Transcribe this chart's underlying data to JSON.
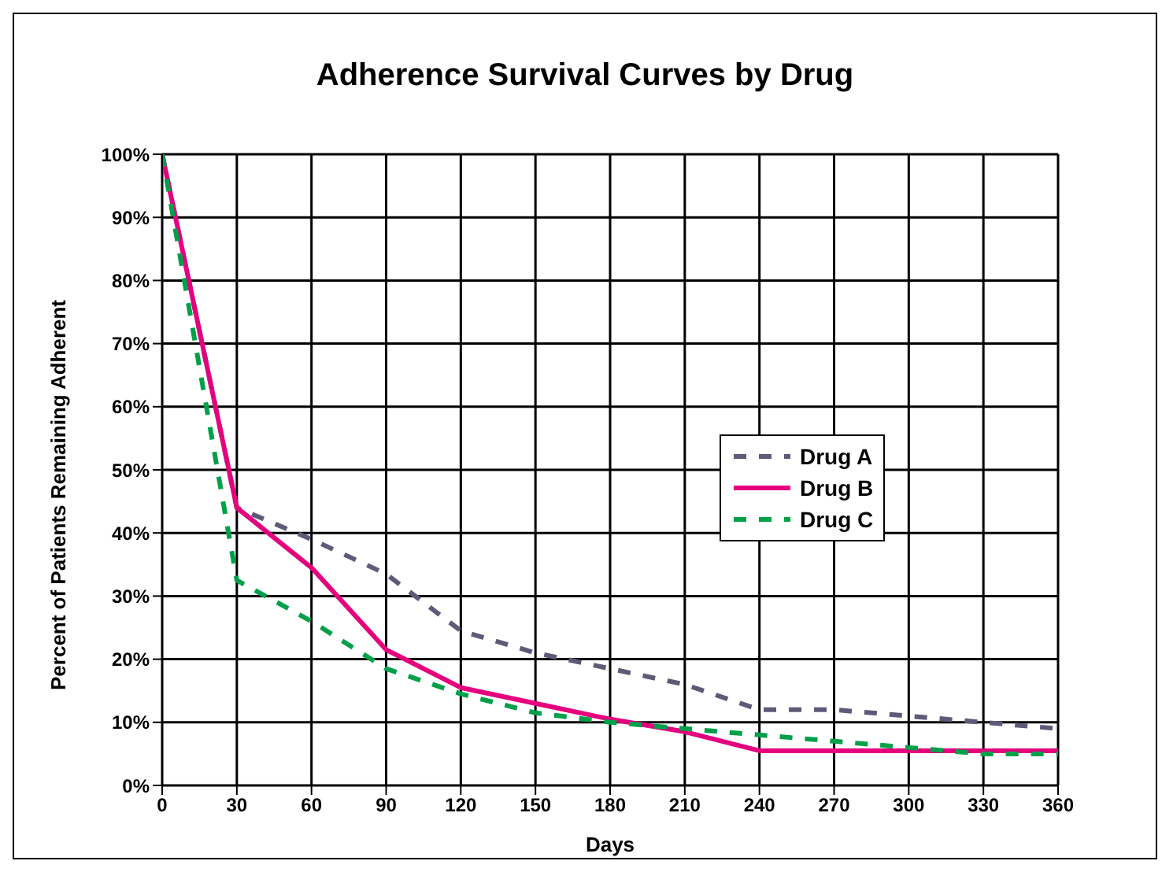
{
  "chart_data": {
    "type": "line",
    "title": "Adherence Survival Curves by Drug",
    "xlabel": "Days",
    "ylabel": "Percent of Patients Remaining Adherent",
    "x": [
      0,
      30,
      60,
      90,
      120,
      150,
      180,
      210,
      240,
      270,
      300,
      330,
      360
    ],
    "series": [
      {
        "name": "Drug A",
        "color": "#5f5a78",
        "line_style": "dashed",
        "values": [
          100,
          44,
          39,
          33.5,
          24.5,
          21,
          18.5,
          16,
          12,
          12,
          11,
          10,
          9
        ]
      },
      {
        "name": "Drug B",
        "color": "#e5007d",
        "line_style": "solid",
        "values": [
          100,
          44,
          34.5,
          21.5,
          15.5,
          13,
          10.5,
          8.5,
          5.5,
          5.5,
          5.5,
          5.5,
          5.5
        ]
      },
      {
        "name": "Drug C",
        "color": "#00a04a",
        "line_style": "dashed",
        "values": [
          100,
          32.5,
          26,
          18.5,
          14.5,
          11.5,
          10,
          9,
          8,
          7,
          6,
          5,
          5
        ]
      }
    ],
    "xlim": [
      0,
      360
    ],
    "xticks": [
      0,
      30,
      60,
      90,
      120,
      150,
      180,
      210,
      240,
      270,
      300,
      330,
      360
    ],
    "ylim": [
      0,
      100
    ],
    "yticks": [
      {
        "value": 0,
        "label": "0%"
      },
      {
        "value": 10,
        "label": "10%"
      },
      {
        "value": 20,
        "label": "20%"
      },
      {
        "value": 30,
        "label": "30%"
      },
      {
        "value": 40,
        "label": "40%"
      },
      {
        "value": 50,
        "label": "50%"
      },
      {
        "value": 60,
        "label": "60%"
      },
      {
        "value": 70,
        "label": "70%"
      },
      {
        "value": 80,
        "label": "80%"
      },
      {
        "value": 90,
        "label": "90%"
      },
      {
        "value": 100,
        "label": "100%"
      }
    ],
    "grid": true,
    "legend": "right",
    "marker": "none"
  }
}
